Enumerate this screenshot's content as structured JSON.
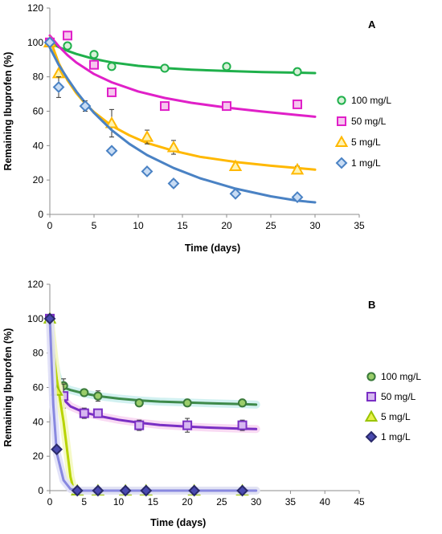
{
  "chart_data": [
    {
      "panel_label": "A",
      "type": "scatter",
      "xlabel": "Time (days)",
      "ylabel": "Remaining Ibuprofen (%)",
      "xlim": [
        0,
        35
      ],
      "ylim": [
        0,
        120
      ],
      "xticks": [
        0,
        5,
        10,
        15,
        20,
        25,
        30,
        35
      ],
      "yticks": [
        0,
        20,
        40,
        60,
        80,
        100,
        120
      ],
      "grid": false,
      "legend_position": "right",
      "series": [
        {
          "name": "100 mg/L",
          "marker": "circle",
          "color": "#1fb04b",
          "fill": "#d8f0d8",
          "x": [
            0,
            2,
            5,
            7,
            13,
            20,
            28
          ],
          "y": [
            100,
            98,
            93,
            86,
            85,
            86,
            83
          ],
          "err": [
            0,
            0,
            0,
            0,
            0,
            0,
            0
          ],
          "fit": {
            "x": [
              0,
              1,
              2,
              3,
              5,
              7,
              10,
              13,
              16,
              20,
              24,
              28,
              30
            ],
            "y": [
              100,
              97.3,
              95.1,
              93.3,
              90.4,
              88.4,
              86.4,
              85.1,
              84.2,
              83.4,
              82.8,
              82.4,
              82.2
            ]
          }
        },
        {
          "name": "50 mg/L",
          "marker": "square",
          "color": "#e020c8",
          "fill": "#f6c6ee",
          "x": [
            0,
            2,
            5,
            7,
            13,
            20,
            28
          ],
          "y": [
            100,
            104,
            87,
            71,
            63,
            63,
            64
          ],
          "err": [
            0,
            0,
            0,
            0,
            0,
            0,
            0
          ],
          "fit": {
            "x": [
              0,
              1,
              2,
              3,
              5,
              7,
              10,
              13,
              16,
              20,
              24,
              28,
              30
            ],
            "y": [
              104,
              97.8,
              92.6,
              88.3,
              81.6,
              76.8,
              71.5,
              67.7,
              64.9,
              62.1,
              59.8,
              57.8,
              56.8
            ]
          }
        },
        {
          "name": "5 mg/L",
          "marker": "triangle",
          "color": "#ffb800",
          "fill": "#fff3b0",
          "x": [
            0,
            1,
            7,
            11,
            14,
            21,
            28
          ],
          "y": [
            100,
            82,
            53,
            45,
            39,
            28,
            26
          ],
          "err": [
            0,
            0,
            8,
            4,
            4,
            0,
            2
          ],
          "fit": {
            "x": [
              0,
              0.5,
              1,
              2,
              3,
              4,
              5,
              7,
              9,
              11,
              14,
              17,
              21,
              25,
              28,
              30
            ],
            "y": [
              102,
              95,
              88,
              78,
              70.5,
              64.5,
              59.5,
              51.5,
              46,
              41.5,
              37,
              33.5,
              30.5,
              28.3,
              27,
              26
            ]
          }
        },
        {
          "name": "1 mg/L",
          "marker": "diamond",
          "color": "#4a82c4",
          "fill": "#c8dcf4",
          "x": [
            0,
            1,
            4,
            7,
            11,
            14,
            21,
            28
          ],
          "y": [
            100,
            74,
            63,
            37,
            25,
            18,
            12,
            10
          ],
          "err": [
            0,
            6,
            3,
            0,
            0,
            2,
            0,
            0
          ],
          "fit": {
            "x": [
              0,
              0.5,
              1,
              2,
              3,
              4,
              5,
              7,
              9,
              11,
              14,
              17,
              21,
              25,
              28,
              30
            ],
            "y": [
              97,
              92,
              87,
              79,
              71.5,
              65,
              59,
              49,
              41,
              34.5,
              27,
              21,
              15,
              10.5,
              8,
              7
            ]
          }
        }
      ]
    },
    {
      "panel_label": "B",
      "type": "scatter",
      "xlabel": "Time (days)",
      "ylabel": "Remaining Ibuprofen (%)",
      "xlim": [
        0,
        45
      ],
      "ylim": [
        0,
        120
      ],
      "xticks": [
        0,
        5,
        10,
        15,
        20,
        25,
        30,
        35,
        40,
        45
      ],
      "yticks": [
        0,
        20,
        40,
        60,
        80,
        100,
        120
      ],
      "grid": false,
      "legend_position": "right",
      "series": [
        {
          "name": "100 mg/L",
          "marker": "circle",
          "color": "#3a7a3a",
          "fill": "#9acd6a",
          "line": "#3e8a4a",
          "glow": "#cdeff0",
          "x": [
            0,
            2,
            5,
            7,
            13,
            20,
            28
          ],
          "y": [
            100,
            61,
            57,
            55,
            51,
            51,
            51
          ],
          "err": [
            0,
            4,
            0,
            3,
            0,
            0,
            0
          ],
          "fit": {
            "x": [
              0,
              0.5,
              1,
              1.5,
              2,
              3,
              5,
              7,
              10,
              13,
              16,
              20,
              24,
              28,
              30
            ],
            "y": [
              100,
              80,
              68,
              62,
              60,
              58.5,
              56.5,
              55,
              53.5,
              52.5,
              51.8,
              51.2,
              50.7,
              50.3,
              50
            ]
          }
        },
        {
          "name": "50 mg/L",
          "marker": "square",
          "color": "#7a2fc4",
          "fill": "#d6b8f0",
          "line": "#7a2fc4",
          "glow": "#f8d6f2",
          "x": [
            0,
            2,
            5,
            7,
            13,
            20,
            28
          ],
          "y": [
            100,
            55,
            45,
            45,
            38,
            38,
            38
          ],
          "err": [
            0,
            7,
            3,
            2,
            3,
            4,
            3
          ],
          "fit": {
            "x": [
              0,
              0.5,
              1,
              1.5,
              2,
              3,
              5,
              7,
              10,
              13,
              16,
              20,
              24,
              28,
              30
            ],
            "y": [
              100,
              76,
              63,
              57,
              53,
              49,
              45.5,
              43.5,
              41.2,
              39.5,
              38.2,
              37.2,
              36.5,
              36,
              35.8
            ]
          }
        },
        {
          "name": "5 mg/L",
          "marker": "triangle",
          "color": "#9ac400",
          "fill": "#e8f04a",
          "line": "#b8d400",
          "glow": "#f4f8c0",
          "x": [
            0,
            1,
            4,
            7,
            11,
            14,
            21,
            28
          ],
          "y": [
            100,
            58,
            0,
            0,
            0,
            0,
            0,
            0
          ],
          "err": [
            0,
            0,
            0,
            0,
            0,
            0,
            0,
            0
          ],
          "fit": {
            "x": [
              0,
              1,
              2,
              3,
              3.5,
              4,
              30
            ],
            "y": [
              100,
              65,
              40,
              8,
              0,
              0,
              0
            ]
          }
        },
        {
          "name": "1 mg/L",
          "marker": "diamond",
          "color": "#2a2a6a",
          "fill": "#4a4ab0",
          "line": "#8888e0",
          "glow": "#e0e0f8",
          "x": [
            0,
            1,
            4,
            7,
            11,
            14,
            21,
            28
          ],
          "y": [
            100,
            24,
            0,
            0,
            0,
            0,
            0,
            0
          ],
          "err": [
            0,
            0,
            0,
            0,
            0,
            0,
            0,
            0
          ],
          "fit": {
            "x": [
              0,
              0.5,
              1,
              2,
              3,
              4,
              30
            ],
            "y": [
              100,
              50,
              22,
              6,
              1,
              0,
              0
            ]
          }
        }
      ]
    }
  ]
}
